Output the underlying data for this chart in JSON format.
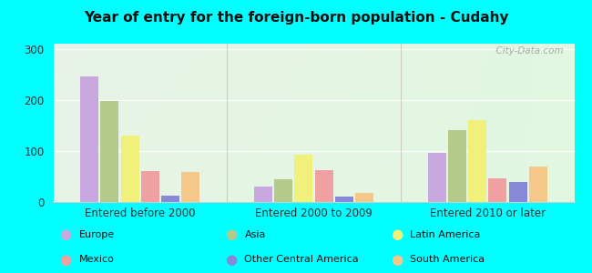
{
  "title": "Year of entry for the foreign-born population - Cudahy",
  "categories": [
    "Entered before 2000",
    "Entered 2000 to 2009",
    "Entered 2010 or later"
  ],
  "series": {
    "Europe": [
      245,
      30,
      97
    ],
    "Asia": [
      197,
      45,
      140
    ],
    "Latin America": [
      130,
      92,
      160
    ],
    "Mexico": [
      60,
      62,
      47
    ],
    "Other Central America": [
      13,
      10,
      40
    ],
    "South America": [
      58,
      17,
      70
    ]
  },
  "colors": {
    "Europe": "#c9a8e0",
    "Asia": "#b5c98a",
    "Latin America": "#f0f07a",
    "Mexico": "#f0a0a0",
    "Other Central America": "#8888d8",
    "South America": "#f5c88a"
  },
  "bar_order": [
    "Europe",
    "Asia",
    "Latin America",
    "Mexico",
    "Other Central America",
    "South America"
  ],
  "legend_row1": [
    "Europe",
    "Asia",
    "Latin America"
  ],
  "legend_row2": [
    "Mexico",
    "Other Central America",
    "South America"
  ],
  "ylim": [
    0,
    310
  ],
  "yticks": [
    0,
    100,
    200,
    300
  ],
  "fig_background": "#00ffff",
  "watermark": "  City-Data.com"
}
